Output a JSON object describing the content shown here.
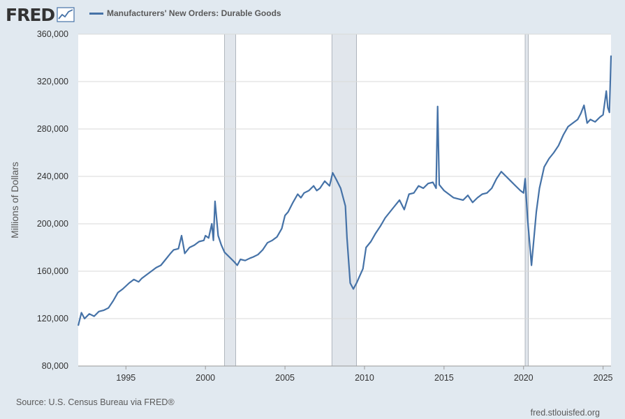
{
  "brand": {
    "logo_text": "FRED",
    "logo_icon": "line-chart-icon"
  },
  "legend": {
    "series_label": "Manufacturers' New Orders: Durable Goods",
    "color": "#4572a7"
  },
  "footer": {
    "source": "Source: U.S. Census Bureau via FRED®",
    "site": "fred.stlouisfed.org"
  },
  "colors": {
    "background": "#e1e9f0",
    "plot_background": "#ffffff",
    "grid": "#d9d9d9",
    "recession": "#e1e6ec",
    "line": "#4572a7"
  },
  "chart_data": {
    "type": "line",
    "title": "",
    "xlabel": "",
    "ylabel": "Millions of Dollars",
    "xlim": [
      1992.0,
      2025.5
    ],
    "ylim": [
      80000,
      360000
    ],
    "yticks": [
      80000,
      120000,
      160000,
      200000,
      240000,
      280000,
      320000,
      360000
    ],
    "ytick_labels": [
      "80,000",
      "120,000",
      "160,000",
      "200,000",
      "240,000",
      "280,000",
      "320,000",
      "360,000"
    ],
    "xticks": [
      1995,
      2000,
      2005,
      2010,
      2015,
      2020,
      2025
    ],
    "xtick_labels": [
      "1995",
      "2000",
      "2005",
      "2010",
      "2015",
      "2020",
      "2025"
    ],
    "grid": true,
    "legend_position": "top",
    "recessions": [
      [
        2001.2,
        2001.9
      ],
      [
        2007.95,
        2009.5
      ],
      [
        2020.1,
        2020.3
      ]
    ],
    "series": [
      {
        "name": "Manufacturers' New Orders: Durable Goods",
        "x": [
          1992.0,
          1992.2,
          1992.4,
          1992.7,
          1993.0,
          1993.3,
          1993.6,
          1993.9,
          1994.2,
          1994.5,
          1994.8,
          1995.2,
          1995.5,
          1995.8,
          1996.0,
          1996.3,
          1996.6,
          1996.9,
          1997.2,
          1997.5,
          1997.8,
          1998.0,
          1998.3,
          1998.5,
          1998.7,
          1999.0,
          1999.3,
          1999.6,
          1999.9,
          2000.0,
          2000.2,
          2000.4,
          2000.5,
          2000.6,
          2000.8,
          2001.0,
          2001.2,
          2001.5,
          2001.8,
          2002.0,
          2002.2,
          2002.5,
          2002.8,
          2003.0,
          2003.3,
          2003.6,
          2003.9,
          2004.2,
          2004.5,
          2004.8,
          2005.0,
          2005.2,
          2005.5,
          2005.8,
          2006.0,
          2006.2,
          2006.5,
          2006.8,
          2007.0,
          2007.2,
          2007.5,
          2007.8,
          2008.0,
          2008.2,
          2008.5,
          2008.8,
          2008.9,
          2009.1,
          2009.3,
          2009.5,
          2009.7,
          2009.9,
          2010.1,
          2010.4,
          2010.7,
          2011.0,
          2011.3,
          2011.6,
          2011.9,
          2012.2,
          2012.5,
          2012.8,
          2013.1,
          2013.4,
          2013.7,
          2014.0,
          2014.3,
          2014.5,
          2014.6,
          2014.7,
          2015.0,
          2015.3,
          2015.6,
          2015.9,
          2016.2,
          2016.5,
          2016.8,
          2017.1,
          2017.4,
          2017.7,
          2018.0,
          2018.3,
          2018.6,
          2018.9,
          2019.2,
          2019.5,
          2019.8,
          2020.0,
          2020.1,
          2020.25,
          2020.5,
          2020.8,
          2021.0,
          2021.3,
          2021.6,
          2021.9,
          2022.2,
          2022.5,
          2022.8,
          2023.1,
          2023.4,
          2023.6,
          2023.8,
          2024.0,
          2024.2,
          2024.5,
          2024.8,
          2025.0,
          2025.2,
          2025.3,
          2025.4,
          2025.5
        ],
        "values": [
          114000,
          125000,
          120000,
          124000,
          122000,
          126000,
          127000,
          129000,
          135000,
          142000,
          145000,
          150000,
          153000,
          151000,
          154000,
          157000,
          160000,
          163000,
          165000,
          170000,
          175000,
          178000,
          179000,
          190000,
          175000,
          180000,
          182000,
          185000,
          186000,
          190000,
          188000,
          200000,
          186000,
          219000,
          190000,
          182000,
          176000,
          172000,
          168000,
          165000,
          170000,
          169000,
          171000,
          172000,
          174000,
          178000,
          184000,
          186000,
          189000,
          196000,
          207000,
          210000,
          218000,
          225000,
          222000,
          226000,
          228000,
          232000,
          228000,
          230000,
          236000,
          232000,
          243000,
          238000,
          230000,
          215000,
          188000,
          150000,
          145000,
          150000,
          156000,
          162000,
          180000,
          185000,
          192000,
          198000,
          205000,
          210000,
          215000,
          220000,
          212000,
          225000,
          226000,
          232000,
          230000,
          234000,
          235000,
          230000,
          299000,
          233000,
          228000,
          225000,
          222000,
          221000,
          220000,
          224000,
          218000,
          222000,
          225000,
          226000,
          230000,
          238000,
          244000,
          240000,
          236000,
          232000,
          228000,
          226000,
          238000,
          205000,
          165000,
          210000,
          230000,
          248000,
          255000,
          260000,
          266000,
          275000,
          282000,
          285000,
          288000,
          293000,
          300000,
          285000,
          288000,
          286000,
          290000,
          292000,
          312000,
          298000,
          294000,
          342000
        ]
      }
    ]
  }
}
